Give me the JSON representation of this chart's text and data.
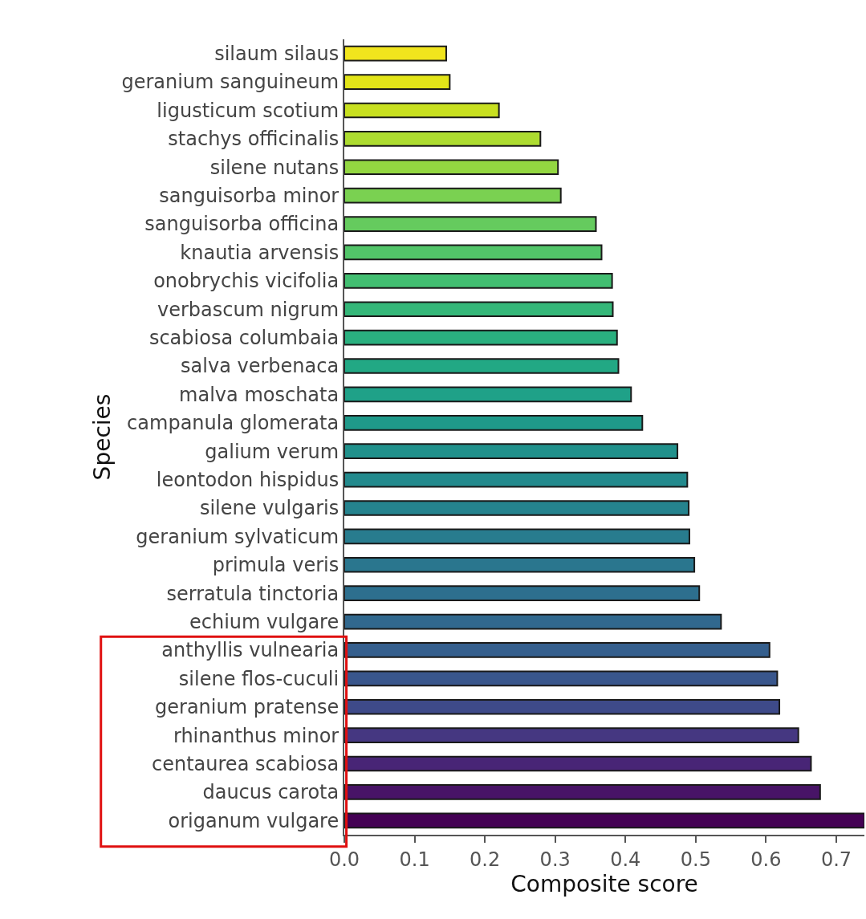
{
  "chart_data": {
    "type": "bar",
    "orientation": "horizontal",
    "xlabel": "Composite score",
    "ylabel": "Species",
    "categories": [
      "silaum silaus",
      "geranium sanguineum",
      "ligusticum scotium",
      "stachys officinalis",
      "silene nutans",
      "sanguisorba minor",
      "sanguisorba officina",
      "knautia arvensis",
      "onobrychis vicifolia",
      "verbascum nigrum",
      "scabiosa columbaia",
      "salva verbenaca",
      "malva moschata",
      "campanula glomerata",
      "galium verum",
      "leontodon hispidus",
      "silene vulgaris",
      "geranium sylvaticum",
      "primula veris",
      "serratula tinctoria",
      "echium vulgare",
      "anthyllis vulnearia",
      "silene flos-cuculi",
      "geranium pratense",
      "rhinanthus minor",
      "centaurea scabiosa",
      "daucus carota",
      "origanum vulgare"
    ],
    "values": [
      0.145,
      0.15,
      0.22,
      0.279,
      0.304,
      0.308,
      0.358,
      0.366,
      0.381,
      0.382,
      0.388,
      0.39,
      0.408,
      0.424,
      0.474,
      0.488,
      0.49,
      0.491,
      0.498,
      0.505,
      0.536,
      0.605,
      0.616,
      0.619,
      0.646,
      0.664,
      0.677,
      0.74
    ],
    "colors": [
      "#f1e51d",
      "#e2e418",
      "#c8e020",
      "#addc30",
      "#93d741",
      "#7ad151",
      "#65cb5e",
      "#52c569",
      "#42be71",
      "#35b779",
      "#2ab07f",
      "#22a884",
      "#1fa188",
      "#1f998a",
      "#21918c",
      "#238a8d",
      "#25838e",
      "#287c8e",
      "#2a768e",
      "#2d6f8e",
      "#31688e",
      "#355f8d",
      "#39568c",
      "#3e4a89",
      "#453781",
      "#482576",
      "#481467",
      "#440154"
    ],
    "xlim": [
      0,
      0.74
    ],
    "xticks": [
      {
        "value": 0,
        "label": "0.0"
      },
      {
        "value": 0.1,
        "label": "0.1"
      },
      {
        "value": 0.2,
        "label": "0.2"
      },
      {
        "value": 0.3,
        "label": "0.3"
      },
      {
        "value": 0.4,
        "label": "0.4"
      },
      {
        "value": 0.5,
        "label": "0.5"
      },
      {
        "value": 0.6,
        "label": "0.6"
      },
      {
        "value": 0.7,
        "label": "0.7"
      }
    ],
    "legend": false
  }
}
